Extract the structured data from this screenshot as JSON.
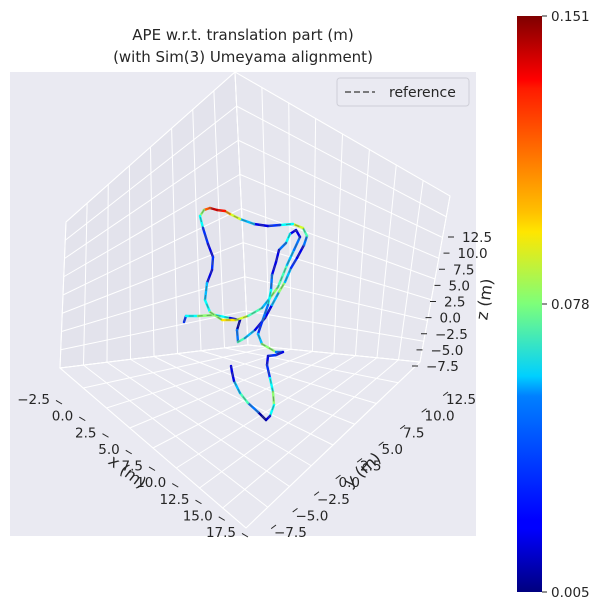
{
  "chart_data": {
    "type": "line",
    "title": "APE w.r.t. translation part (m)",
    "subtitle": "(with Sim(3) Umeyama alignment)",
    "xlabel": "x (m)",
    "ylabel": "y (m)",
    "zlabel": "z (m)",
    "x_ticks": [
      "−2.5",
      "0.0",
      "2.5",
      "5.0",
      "7.5",
      "10.0",
      "12.5",
      "15.0",
      "17.5"
    ],
    "y_ticks": [
      "−7.5",
      "−5.0",
      "−2.5",
      "0.0",
      "2.5",
      "5.0",
      "7.5",
      "10.0",
      "12.5"
    ],
    "z_ticks": [
      "−7.5",
      "−5.0",
      "−2.5",
      "0.0",
      "2.5",
      "5.0",
      "7.5",
      "10.0",
      "12.5"
    ],
    "legend": {
      "placement": "top-right",
      "entries": [
        "reference"
      ]
    },
    "colorbar": {
      "colormap": "jet",
      "min": 0.005,
      "max": 0.151,
      "tick_labels": [
        "0.151",
        "0.078",
        "0.005"
      ]
    },
    "grid": true,
    "trajectory_error_samples": [
      0.03,
      0.06,
      0.08,
      0.06,
      0.02,
      0.01,
      0.04,
      0.07,
      0.05,
      0.02,
      0.02,
      0.05,
      0.08,
      0.05,
      0.03,
      0.02,
      0.04,
      0.07,
      0.09,
      0.06,
      0.03,
      0.02,
      0.05,
      0.09,
      0.11,
      0.13,
      0.14,
      0.12,
      0.08,
      0.06,
      0.03,
      0.02,
      0.03,
      0.02,
      0.05,
      0.06,
      0.08,
      0.1,
      0.09,
      0.07,
      0.05,
      0.08,
      0.07,
      0.05,
      0.04,
      0.02,
      0.02,
      0.06,
      0.04,
      0.02,
      0.02,
      0.04,
      0.06,
      0.04,
      0.03,
      0.05,
      0.08,
      0.04,
      0.02,
      0.03,
      0.02
    ],
    "colors": {
      "background": "#EAEAF2",
      "grid": "#FFFFFF",
      "reference": "#555555"
    }
  }
}
